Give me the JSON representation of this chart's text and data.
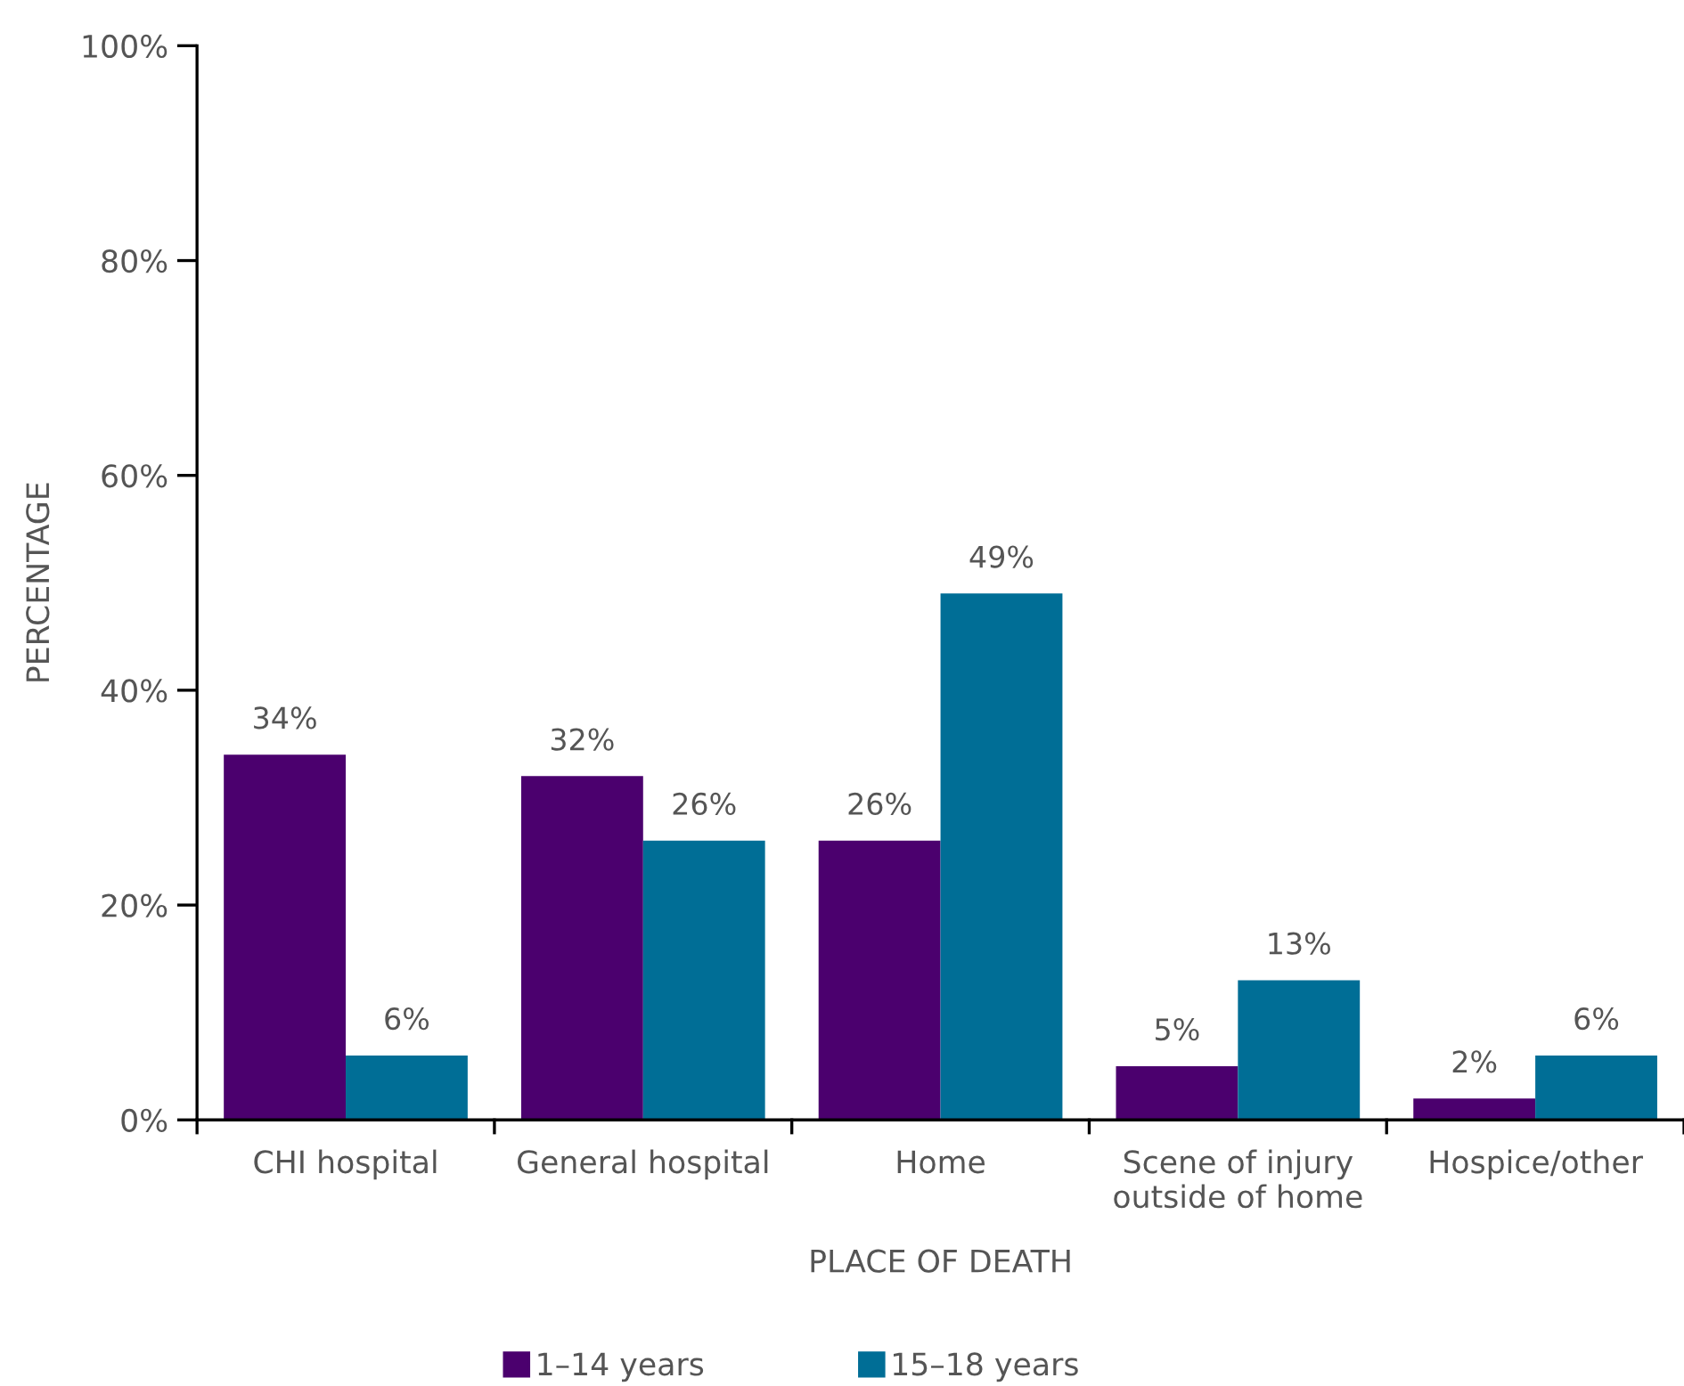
{
  "chart_data": {
    "type": "bar",
    "xlabel": "PLACE OF DEATH",
    "ylabel": "PERCENTAGE",
    "categories": [
      "CHI hospital",
      "General hospital",
      "Home",
      "Scene of injury\noutside of home",
      "Hospice/other"
    ],
    "series": [
      {
        "name": "1–14 years",
        "color": "#4b006e",
        "values": [
          34,
          32,
          26,
          5,
          2
        ],
        "value_labels": [
          "34%",
          "32%",
          "26%",
          "5%",
          "2%"
        ]
      },
      {
        "name": "15–18 years",
        "color": "#006e96",
        "values": [
          6,
          26,
          49,
          13,
          6
        ],
        "value_labels": [
          "6%",
          "26%",
          "49%",
          "13%",
          "6%"
        ]
      }
    ],
    "ylim": [
      0,
      100
    ],
    "yticks": [
      {
        "value": 0,
        "label": "0%"
      },
      {
        "value": 20,
        "label": "20%"
      },
      {
        "value": 40,
        "label": "40%"
      },
      {
        "value": 60,
        "label": "60%"
      },
      {
        "value": 80,
        "label": "80%"
      },
      {
        "value": 100,
        "label": "100%"
      }
    ],
    "grid": false,
    "legend": "bottom"
  }
}
